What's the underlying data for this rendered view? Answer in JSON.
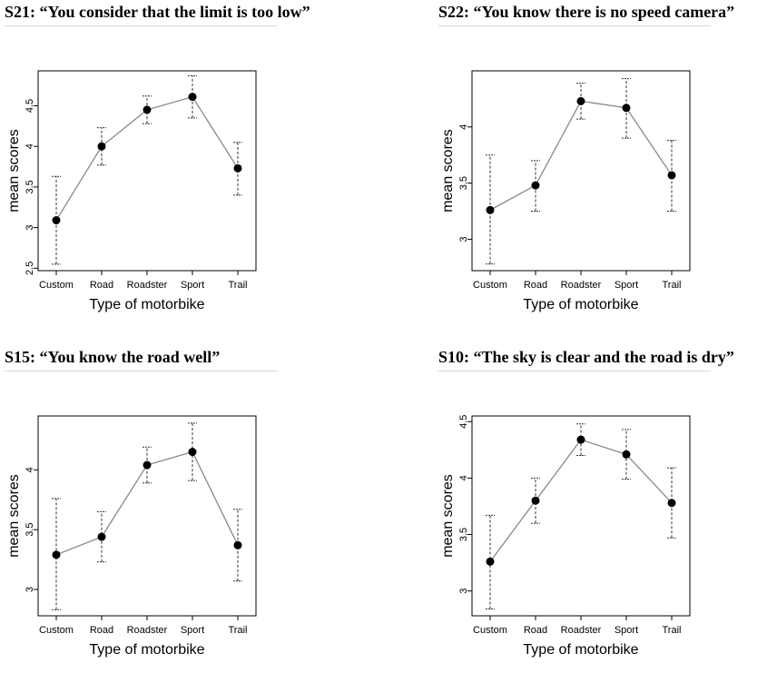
{
  "chart_data": [
    {
      "type": "line",
      "title": "S21: “You consider that the limit is too low”",
      "xlabel": "Type of motorbike",
      "ylabel": "mean scores",
      "categories": [
        "Custom",
        "Road",
        "Roadster",
        "Sport",
        "Trail"
      ],
      "values": [
        3.09,
        4.0,
        4.45,
        4.61,
        3.73
      ],
      "error_low": [
        2.55,
        3.77,
        4.28,
        4.35,
        3.4
      ],
      "error_high": [
        3.63,
        4.23,
        4.62,
        4.87,
        4.05
      ],
      "yticks": [
        2.5,
        3.0,
        3.5,
        4.0,
        4.5
      ],
      "ylim": [
        2.47,
        4.93
      ]
    },
    {
      "type": "line",
      "title": "S22: “You know there is no speed camera”",
      "xlabel": "Type of motorbike",
      "ylabel": "mean scores",
      "categories": [
        "Custom",
        "Road",
        "Roadster",
        "Sport",
        "Trail"
      ],
      "values": [
        3.26,
        3.48,
        4.23,
        4.17,
        3.57
      ],
      "error_low": [
        2.78,
        3.25,
        4.07,
        3.9,
        3.25
      ],
      "error_high": [
        3.75,
        3.7,
        4.39,
        4.43,
        3.88
      ],
      "yticks": [
        3.0,
        3.5,
        4.0
      ],
      "ylim": [
        2.72,
        4.5
      ]
    },
    {
      "type": "line",
      "title": "S15: “You know the road well”",
      "xlabel": "Type of motorbike",
      "ylabel": "mean scores",
      "categories": [
        "Custom",
        "Road",
        "Roadster",
        "Sport",
        "Trail"
      ],
      "values": [
        3.29,
        3.44,
        4.04,
        4.15,
        3.37
      ],
      "error_low": [
        2.83,
        3.23,
        3.89,
        3.91,
        3.07
      ],
      "error_high": [
        3.76,
        3.65,
        4.19,
        4.39,
        3.67
      ],
      "yticks": [
        3.0,
        3.5,
        4.0
      ],
      "ylim": [
        2.78,
        4.45
      ]
    },
    {
      "type": "line",
      "title": "S10: “The sky is clear and the road is dry”",
      "xlabel": "Type of motorbike",
      "ylabel": "mean scores",
      "categories": [
        "Custom",
        "Road",
        "Roadster",
        "Sport",
        "Trail"
      ],
      "values": [
        3.26,
        3.8,
        4.34,
        4.21,
        3.78
      ],
      "error_low": [
        2.84,
        3.6,
        4.2,
        3.99,
        3.47
      ],
      "error_high": [
        3.67,
        4.0,
        4.48,
        4.43,
        4.09
      ],
      "yticks": [
        3.0,
        3.5,
        4.0,
        4.5
      ],
      "ylim": [
        2.78,
        4.55
      ]
    }
  ]
}
